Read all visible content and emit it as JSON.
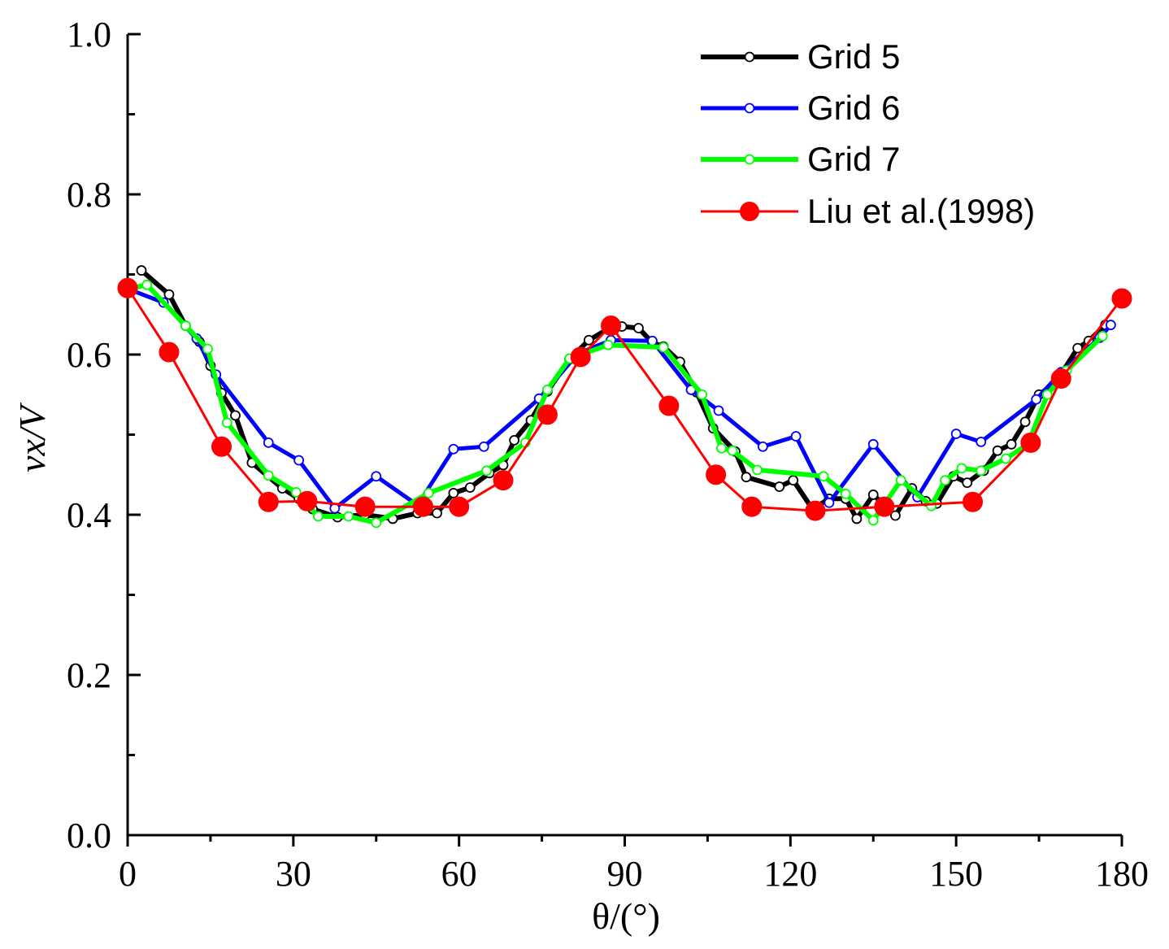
{
  "chart_data": {
    "type": "line",
    "xlabel": "θ/(°)",
    "ylabel": "vx/V",
    "xlim": [
      0,
      180
    ],
    "ylim": [
      0,
      1.0
    ],
    "x_ticks": [
      "0",
      "30",
      "60",
      "90",
      "120",
      "150",
      "180"
    ],
    "y_ticks": [
      "0.0",
      "0.2",
      "0.4",
      "0.6",
      "0.8",
      "1.0"
    ],
    "grid": false,
    "legend_position": "top-right",
    "series": [
      {
        "name": "Grid 5",
        "color": "#000000",
        "marker": "open-circle",
        "x": [
          2.5,
          7.5,
          10.5,
          13,
          15,
          17,
          19.5,
          22.5,
          28,
          31,
          33.5,
          38,
          43,
          48,
          52.5,
          56,
          59,
          62,
          65.5,
          68,
          70,
          73,
          76,
          80,
          83.5,
          87,
          89.5,
          92.5,
          95,
          97,
          100,
          103,
          106,
          110,
          112,
          118,
          120.5,
          124,
          127,
          130,
          132,
          135,
          139,
          142,
          144.5,
          146.5,
          149.5,
          152,
          155,
          157.5,
          160,
          162.5,
          165,
          168,
          172,
          174,
          177
        ],
        "y": [
          0.705,
          0.675,
          0.636,
          0.616,
          0.586,
          0.552,
          0.524,
          0.465,
          0.433,
          0.42,
          0.407,
          0.397,
          0.4,
          0.395,
          0.402,
          0.402,
          0.427,
          0.434,
          0.452,
          0.462,
          0.493,
          0.518,
          0.554,
          0.594,
          0.618,
          0.632,
          0.635,
          0.633,
          0.615,
          0.61,
          0.591,
          0.553,
          0.508,
          0.479,
          0.447,
          0.435,
          0.443,
          0.407,
          0.42,
          0.42,
          0.395,
          0.425,
          0.399,
          0.433,
          0.417,
          0.414,
          0.448,
          0.44,
          0.455,
          0.48,
          0.488,
          0.516,
          0.55,
          0.565,
          0.608,
          0.617,
          0.637
        ]
      },
      {
        "name": "Grid 6",
        "color": "#0000ff",
        "marker": "open-circle",
        "x": [
          0,
          6.5,
          12.5,
          16,
          25.5,
          31,
          37.5,
          45,
          52.5,
          59,
          64.5,
          74.5,
          81.5,
          87.5,
          95,
          102,
          107,
          115,
          121,
          127,
          135,
          143,
          150,
          154.5,
          164.5,
          169,
          176,
          178
        ],
        "y": [
          0.682,
          0.665,
          0.62,
          0.575,
          0.49,
          0.468,
          0.408,
          0.448,
          0.412,
          0.482,
          0.485,
          0.545,
          0.601,
          0.618,
          0.617,
          0.556,
          0.53,
          0.485,
          0.498,
          0.415,
          0.488,
          0.422,
          0.501,
          0.491,
          0.544,
          0.578,
          0.621,
          0.637
        ]
      },
      {
        "name": "Grid 7",
        "color": "#00ff00",
        "marker": "open-circle",
        "x": [
          0,
          3.5,
          10.5,
          14.5,
          18,
          25.5,
          30.5,
          34.5,
          40,
          45,
          54.5,
          65,
          72,
          76,
          80,
          87,
          97,
          104,
          107.5,
          109.5,
          114,
          126,
          130,
          135,
          140,
          145.5,
          148,
          151,
          154.5,
          159,
          163,
          166.5,
          170,
          176.5
        ],
        "y": [
          0.682,
          0.687,
          0.636,
          0.607,
          0.515,
          0.449,
          0.428,
          0.398,
          0.398,
          0.39,
          0.427,
          0.455,
          0.49,
          0.556,
          0.595,
          0.612,
          0.609,
          0.55,
          0.483,
          0.48,
          0.456,
          0.448,
          0.426,
          0.393,
          0.443,
          0.411,
          0.443,
          0.458,
          0.455,
          0.47,
          0.488,
          0.55,
          0.58,
          0.623
        ]
      },
      {
        "name": "Liu et al.(1998)",
        "color": "#ff0000",
        "marker": "filled-circle",
        "x": [
          0,
          7.5,
          17,
          25.5,
          32.5,
          43,
          53.5,
          60,
          68,
          76,
          82,
          87.5,
          98,
          106.5,
          113,
          124.5,
          137,
          153,
          163.5,
          169,
          180
        ],
        "y": [
          0.683,
          0.603,
          0.485,
          0.416,
          0.417,
          0.41,
          0.41,
          0.41,
          0.443,
          0.525,
          0.597,
          0.636,
          0.536,
          0.45,
          0.41,
          0.405,
          0.41,
          0.416,
          0.49,
          0.57,
          0.67
        ]
      }
    ]
  }
}
